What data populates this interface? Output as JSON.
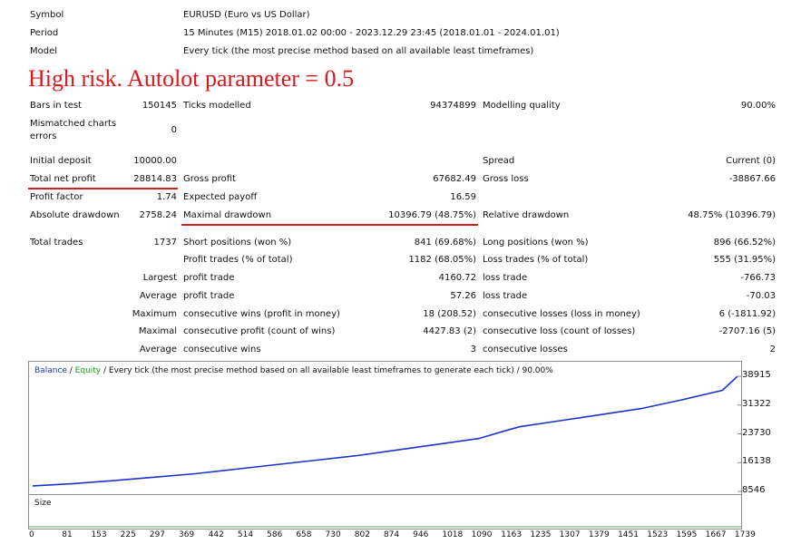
{
  "info": [
    {
      "label": "Symbol",
      "value": "EURUSD (Euro vs US Dollar)"
    },
    {
      "label": "Period",
      "value": "15 Minutes (M15) 2018.01.02 00:00 - 2023.12.29 23:45 (2018.01.01 - 2024.01.01)"
    },
    {
      "label": "Model",
      "value": "Every tick (the most precise method based on all available least timeframes)"
    }
  ],
  "headline": "High risk. Autolot parameter = 0.5",
  "stats": {
    "bars_in_test_label": "Bars in test",
    "bars_in_test": "150145",
    "ticks_modelled_label": "Ticks modelled",
    "ticks_modelled": "94374899",
    "modelling_quality_label": "Modelling quality",
    "modelling_quality": "90.00%",
    "mismatched_label_1": "Mismatched charts",
    "mismatched_label_2": "errors",
    "mismatched": "0",
    "initial_deposit_label": "Initial deposit",
    "initial_deposit": "10000.00",
    "spread_label": "Spread",
    "spread": "Current (0)",
    "total_net_profit_label": "Total net profit",
    "total_net_profit": "28814.83",
    "gross_profit_label": "Gross profit",
    "gross_profit": "67682.49",
    "gross_loss_label": "Gross loss",
    "gross_loss": "-38867.66",
    "profit_factor_label": "Profit factor",
    "profit_factor": "1.74",
    "expected_payoff_label": "Expected payoff",
    "expected_payoff": "16.59",
    "absolute_drawdown_label": "Absolute drawdown",
    "absolute_drawdown": "2758.24",
    "maximal_drawdown_label": "Maximal drawdown",
    "maximal_drawdown": "10396.79 (48.75%)",
    "relative_drawdown_label": "Relative drawdown",
    "relative_drawdown": "48.75% (10396.79)",
    "total_trades_label": "Total trades",
    "total_trades": "1737",
    "short_positions_label": "Short positions (won %)",
    "short_positions": "841 (69.68%)",
    "long_positions_label": "Long positions (won %)",
    "long_positions": "896 (66.52%)",
    "profit_trades_label": "Profit trades (% of total)",
    "profit_trades": "1182 (68.05%)",
    "loss_trades_label": "Loss trades (% of total)",
    "loss_trades": "555 (31.95%)",
    "largest_label": "Largest",
    "largest_profit_label": "profit trade",
    "largest_profit": "4160.72",
    "largest_loss_label": "loss trade",
    "largest_loss": "-766.73",
    "average_label": "Average",
    "average_profit_label": "profit trade",
    "average_profit": "57.26",
    "average_loss_label": "loss trade",
    "average_loss": "-70.03",
    "maximum_label": "Maximum",
    "max_cons_wins_label": "consecutive wins (profit in money)",
    "max_cons_wins": "18 (208.52)",
    "max_cons_losses_label": "consecutive losses (loss in money)",
    "max_cons_losses": "6 (-1811.92)",
    "maximal_label": "Maximal",
    "maximal_cons_profit_label": "consecutive profit (count of wins)",
    "maximal_cons_profit": "4427.83 (2)",
    "maximal_cons_loss_label": "consecutive loss (count of losses)",
    "maximal_cons_loss": "-2707.16 (5)",
    "average2_label": "Average",
    "avg_cons_wins_label": "consecutive wins",
    "avg_cons_wins": "3",
    "avg_cons_losses_label": "consecutive losses",
    "avg_cons_losses": "2"
  },
  "chart_legend": {
    "balance": "Balance",
    "sep1": " / ",
    "equity": "Equity",
    "rest": " / Every tick (the most precise method based on all available least timeframes to generate each tick) / 90.00%"
  },
  "colors": {
    "balance": "#1c34c8",
    "equity": "#10a51c",
    "highlight": "#e0161b"
  },
  "chart_data": {
    "type": "line",
    "y_ticks": [
      "38915",
      "31322",
      "23730",
      "16138",
      "8546"
    ],
    "x_ticks": [
      "0",
      "81",
      "153",
      "225",
      "297",
      "369",
      "442",
      "514",
      "586",
      "658",
      "730",
      "802",
      "874",
      "946",
      "1018",
      "1090",
      "1163",
      "1235",
      "1307",
      "1379",
      "1451",
      "1523",
      "1595",
      "1667",
      "1739"
    ],
    "ylim": [
      8546,
      38915
    ],
    "xlim": [
      0,
      1737
    ],
    "series": [
      {
        "name": "Balance",
        "x": [
          0,
          100,
          200,
          300,
          400,
          500,
          600,
          700,
          800,
          900,
          1000,
          1100,
          1163,
          1200,
          1300,
          1400,
          1500,
          1600,
          1700,
          1737
        ],
        "y": [
          10000,
          10600,
          11400,
          12300,
          13200,
          14400,
          15600,
          16800,
          18000,
          19500,
          21000,
          22500,
          24500,
          25600,
          27200,
          28800,
          30400,
          32700,
          35200,
          38900
        ]
      }
    ],
    "size_label": "Size"
  }
}
